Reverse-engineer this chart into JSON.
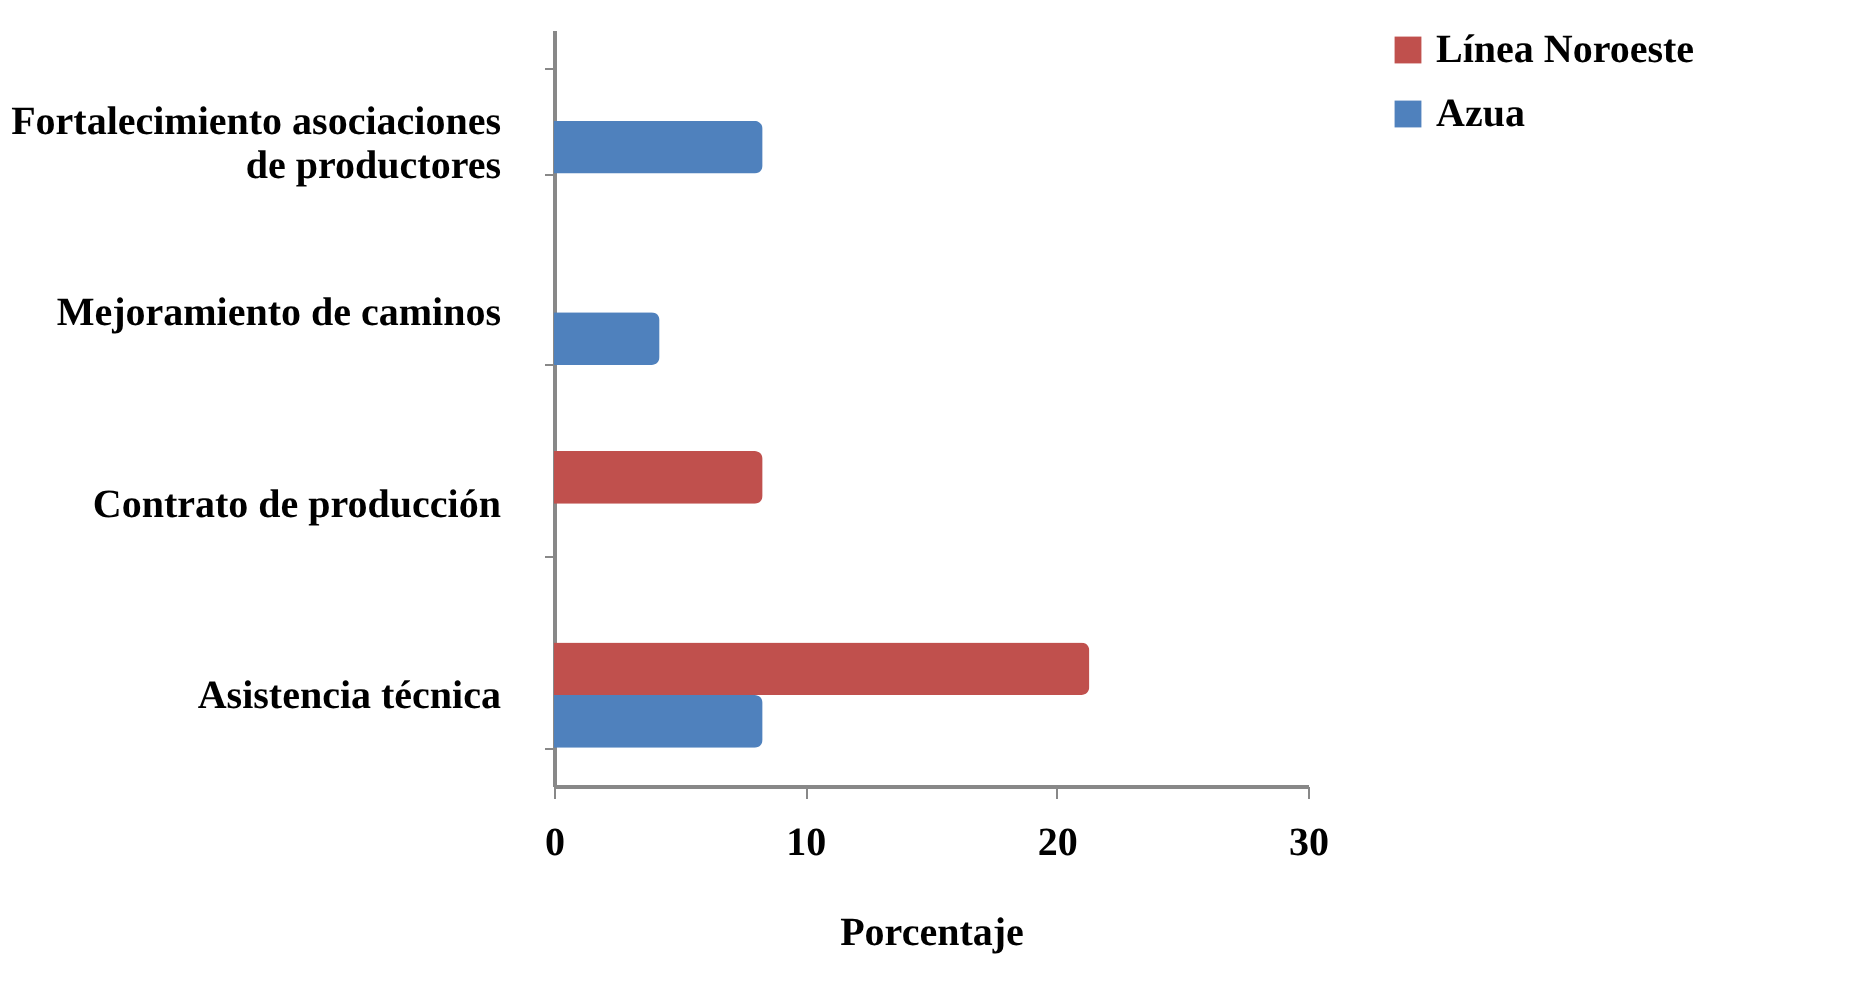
{
  "chart_data": {
    "type": "bar",
    "orientation": "horizontal",
    "categories": [
      "Fortalecimiento asociaciones\nde productores",
      "Mejoramiento de caminos",
      "Contrato de producción",
      "Asistencia técnica"
    ],
    "series": [
      {
        "name": "Línea Noroeste",
        "color": "#c0504d",
        "values": [
          0,
          0,
          8.3,
          21.3
        ]
      },
      {
        "name": "Azua",
        "color": "#4f81bd",
        "values": [
          8.3,
          4.2,
          0,
          8.3
        ]
      }
    ],
    "xlabel": "Porcentaje",
    "xlim": [
      0,
      30
    ],
    "xticks": [
      0,
      10,
      20,
      30
    ],
    "grid": false,
    "legend": "right"
  }
}
